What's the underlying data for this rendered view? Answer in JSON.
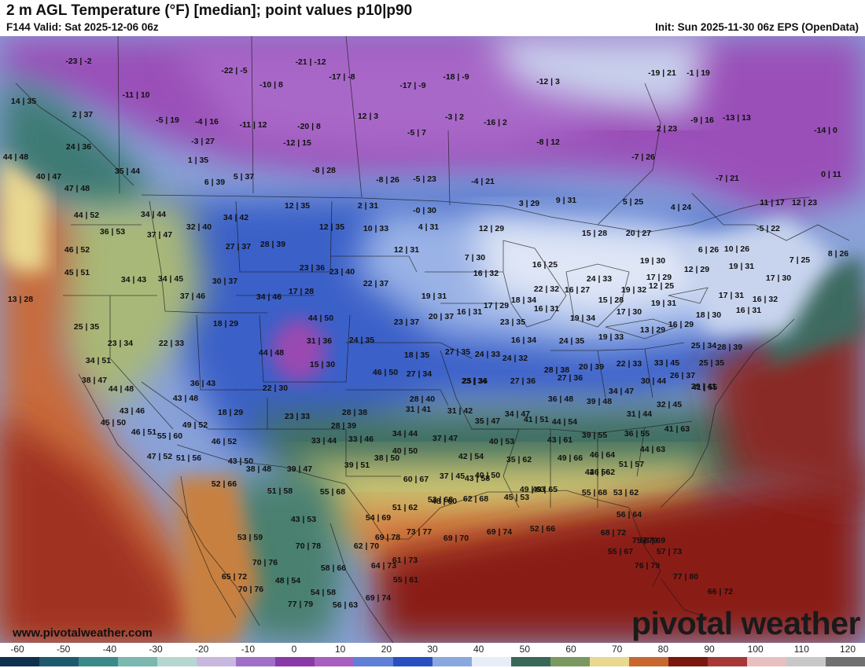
{
  "header": {
    "title": "2 m AGL Temperature (°F) [median]; point values p10|p90",
    "valid": "F144 Valid: Sat 2025-12-06 06z",
    "init": "Init: Sun 2025-11-30 06z EPS (OpenData)"
  },
  "footer": {
    "url": "www.pivotalweather.com",
    "brand": "pivotal weather"
  },
  "scale": {
    "ticks": [
      "-60",
      "-50",
      "-40",
      "-30",
      "-20",
      "-10",
      "0",
      "10",
      "20",
      "30",
      "40",
      "50",
      "60",
      "70",
      "80",
      "90",
      "100",
      "110",
      "120"
    ],
    "colors": [
      "#103050",
      "#1e5a6e",
      "#3a8a8a",
      "#7ab8b0",
      "#b4d8d0",
      "#c8b8e0",
      "#a070c8",
      "#8a3aa8",
      "#a860c0",
      "#6080d8",
      "#2850c0",
      "#8aa8e0",
      "#e8eef8",
      "#3a6858",
      "#7a9860",
      "#e8d890",
      "#c86830",
      "#7a1810",
      "#a83838",
      "#e8c0c0",
      "#c8c8c8",
      "#707070"
    ]
  },
  "points": [
    {
      "label": "-23 | -2"
    },
    {
      "label": "-22 | -5"
    },
    {
      "label": "-21 | -12"
    },
    {
      "label": "-17 | -8"
    },
    {
      "label": "-17 | -9"
    },
    {
      "label": "-18 | -9"
    },
    {
      "label": "-12 | 3"
    },
    {
      "label": "-19 | 21"
    },
    {
      "label": "-1 | 19"
    },
    {
      "label": "14 | 35"
    },
    {
      "label": "-11 | 10"
    },
    {
      "label": "-10 | 8"
    },
    {
      "label": "2 | 37"
    },
    {
      "label": "-5 | 19"
    },
    {
      "label": "-4 | 16"
    },
    {
      "label": "-11 | 12"
    },
    {
      "label": "-20 | 8"
    },
    {
      "label": "12 | 3"
    },
    {
      "label": "-3 | 2"
    },
    {
      "label": "-16 | 2"
    },
    {
      "label": "-5 | 7"
    },
    {
      "label": "2 | 23"
    },
    {
      "label": "-9 | 16"
    },
    {
      "label": "-13 | 13"
    },
    {
      "label": "-14 | 0"
    },
    {
      "label": "24 | 36"
    },
    {
      "label": "-3 | 27"
    },
    {
      "label": "-12 | 15"
    },
    {
      "label": "-8 | 12"
    },
    {
      "label": "44 | 48"
    },
    {
      "label": "1 | 35"
    },
    {
      "label": "-8 | 28"
    },
    {
      "label": "-7 | 26"
    },
    {
      "label": "35 | 44"
    },
    {
      "label": "40 | 47"
    },
    {
      "label": "5 | 37"
    },
    {
      "label": "-8 | 26"
    },
    {
      "label": "-5 | 23"
    },
    {
      "label": "-4 | 21"
    },
    {
      "label": "-7 | 21"
    },
    {
      "label": "0 | 11"
    },
    {
      "label": "6 | 39"
    },
    {
      "label": "47 | 48"
    },
    {
      "label": "12 | 35"
    },
    {
      "label": "2 | 31"
    },
    {
      "label": "-0 | 30"
    },
    {
      "label": "3 | 29"
    },
    {
      "label": "9 | 31"
    },
    {
      "label": "5 | 25"
    },
    {
      "label": "4 | 24"
    },
    {
      "label": "11 | 17"
    },
    {
      "label": "12 | 23"
    },
    {
      "label": "34 | 44"
    },
    {
      "label": "34 | 42"
    },
    {
      "label": "44 | 52"
    },
    {
      "label": "32 | 40"
    },
    {
      "label": "12 | 35"
    },
    {
      "label": "10 | 33"
    },
    {
      "label": "4 | 31"
    },
    {
      "label": "12 | 29"
    },
    {
      "label": "15 | 28"
    },
    {
      "label": "20 | 27"
    },
    {
      "label": "-5 | 22"
    },
    {
      "label": "36 | 53"
    },
    {
      "label": "37 | 47"
    },
    {
      "label": "27 | 37"
    },
    {
      "label": "28 | 39"
    },
    {
      "label": "6 | 26"
    },
    {
      "label": "10 | 26"
    },
    {
      "label": "8 | 26"
    },
    {
      "label": "46 | 52"
    },
    {
      "label": "12 | 31"
    },
    {
      "label": "7 | 30"
    },
    {
      "label": "19 | 30"
    },
    {
      "label": "7 | 25"
    },
    {
      "label": "23 | 36"
    },
    {
      "label": "23 | 40"
    },
    {
      "label": "16 | 25"
    },
    {
      "label": "19 | 31"
    },
    {
      "label": "45 | 51"
    },
    {
      "label": "34 | 43"
    },
    {
      "label": "34 | 45"
    },
    {
      "label": "30 | 37"
    },
    {
      "label": "22 | 37"
    },
    {
      "label": "16 | 32"
    },
    {
      "label": "12 | 29"
    },
    {
      "label": "24 | 33"
    },
    {
      "label": "17 | 29"
    },
    {
      "label": "17 | 30"
    },
    {
      "label": "12 | 25"
    },
    {
      "label": "22 | 32"
    },
    {
      "label": "16 | 27"
    },
    {
      "label": "19 | 32"
    },
    {
      "label": "17 | 31"
    },
    {
      "label": "13 | 28"
    },
    {
      "label": "37 | 46"
    },
    {
      "label": "34 | 46"
    },
    {
      "label": "17 | 28"
    },
    {
      "label": "19 | 31"
    },
    {
      "label": "18 | 34"
    },
    {
      "label": "15 | 28"
    },
    {
      "label": "19 | 31"
    },
    {
      "label": "17 | 29"
    },
    {
      "label": "16 | 31"
    },
    {
      "label": "16 | 31"
    },
    {
      "label": "17 | 30"
    },
    {
      "label": "16 | 32"
    },
    {
      "label": "25 | 35"
    },
    {
      "label": "44 | 50"
    },
    {
      "label": "23 | 37"
    },
    {
      "label": "20 | 37"
    },
    {
      "label": "23 | 35"
    },
    {
      "label": "19 | 34"
    },
    {
      "label": "18 | 30"
    },
    {
      "label": "16 | 31"
    },
    {
      "label": "16 | 29"
    },
    {
      "label": "13 | 29"
    },
    {
      "label": "18 | 29"
    },
    {
      "label": "23 | 34"
    },
    {
      "label": "22 | 33"
    },
    {
      "label": "31 | 36"
    },
    {
      "label": "24 | 35"
    },
    {
      "label": "16 | 34"
    },
    {
      "label": "24 | 35"
    },
    {
      "label": "19 | 33"
    },
    {
      "label": "25 | 34"
    },
    {
      "label": "28 | 39"
    },
    {
      "label": "34 | 51"
    },
    {
      "label": "44 | 48"
    },
    {
      "label": "15 | 30"
    },
    {
      "label": "18 | 35"
    },
    {
      "label": "27 | 35"
    },
    {
      "label": "24 | 33"
    },
    {
      "label": "24 | 32"
    },
    {
      "label": "23 | 34"
    },
    {
      "label": "27 | 36"
    },
    {
      "label": "22 | 33"
    },
    {
      "label": "33 | 45"
    },
    {
      "label": "25 | 35"
    },
    {
      "label": "38 | 47"
    },
    {
      "label": "46 | 50"
    },
    {
      "label": "27 | 34"
    },
    {
      "label": "25 | 36"
    },
    {
      "label": "27 | 36"
    },
    {
      "label": "28 | 38"
    },
    {
      "label": "20 | 39"
    },
    {
      "label": "30 | 44"
    },
    {
      "label": "26 | 37"
    },
    {
      "label": "29 | 41"
    },
    {
      "label": "44 | 48"
    },
    {
      "label": "36 | 43"
    },
    {
      "label": "22 | 30"
    },
    {
      "label": "34 | 47"
    },
    {
      "label": "41 | 55"
    },
    {
      "label": "43 | 46"
    },
    {
      "label": "43 | 48"
    },
    {
      "label": "28 | 40"
    },
    {
      "label": "36 | 48"
    },
    {
      "label": "39 | 48"
    },
    {
      "label": "32 | 45"
    },
    {
      "label": "18 | 29"
    },
    {
      "label": "31 | 41"
    },
    {
      "label": "31 | 42"
    },
    {
      "label": "34 | 47"
    },
    {
      "label": "31 | 44"
    },
    {
      "label": "28 | 38"
    },
    {
      "label": "23 | 33"
    },
    {
      "label": "45 | 50"
    },
    {
      "label": "49 | 52"
    },
    {
      "label": "35 | 47"
    },
    {
      "label": "41 | 51"
    },
    {
      "label": "44 | 54"
    },
    {
      "label": "36 | 55"
    },
    {
      "label": "41 | 63"
    },
    {
      "label": "46 | 51"
    },
    {
      "label": "55 | 60"
    },
    {
      "label": "28 | 39"
    },
    {
      "label": "34 | 44"
    },
    {
      "label": "37 | 47"
    },
    {
      "label": "43 | 61"
    },
    {
      "label": "39 | 55"
    },
    {
      "label": "46 | 52"
    },
    {
      "label": "33 | 44"
    },
    {
      "label": "33 | 46"
    },
    {
      "label": "40 | 53"
    },
    {
      "label": "44 | 63"
    },
    {
      "label": "47 | 52"
    },
    {
      "label": "51 | 56"
    },
    {
      "label": "43 | 50"
    },
    {
      "label": "40 | 50"
    },
    {
      "label": "38 | 50"
    },
    {
      "label": "42 | 54"
    },
    {
      "label": "35 | 62"
    },
    {
      "label": "49 | 66"
    },
    {
      "label": "46 | 64"
    },
    {
      "label": "39 | 51"
    },
    {
      "label": "51 | 57"
    },
    {
      "label": "38 | 48"
    },
    {
      "label": "39 | 47"
    },
    {
      "label": "43 | 58"
    },
    {
      "label": "46 | 62"
    },
    {
      "label": "52 | 66"
    },
    {
      "label": "51 | 58"
    },
    {
      "label": "37 | 45"
    },
    {
      "label": "40 | 50"
    },
    {
      "label": "42 | 56"
    },
    {
      "label": "53 | 68"
    },
    {
      "label": "55 | 68"
    },
    {
      "label": "60 | 67"
    },
    {
      "label": "49 | 63"
    },
    {
      "label": "49 | 65"
    },
    {
      "label": "55 | 68"
    },
    {
      "label": "53 | 62"
    },
    {
      "label": "48 | 60"
    },
    {
      "label": "62 | 68"
    },
    {
      "label": "45 | 53"
    },
    {
      "label": "51 | 62"
    },
    {
      "label": "56 | 64"
    },
    {
      "label": "43 | 53"
    },
    {
      "label": "54 | 69"
    },
    {
      "label": "53 | 59"
    },
    {
      "label": "70 | 78"
    },
    {
      "label": "69 | 78"
    },
    {
      "label": "73 | 77"
    },
    {
      "label": "69 | 70"
    },
    {
      "label": "69 | 74"
    },
    {
      "label": "52 | 66"
    },
    {
      "label": "68 | 72"
    },
    {
      "label": "75 | 79"
    },
    {
      "label": "62 | 70"
    },
    {
      "label": "58 | 69"
    },
    {
      "label": "55 | 67"
    },
    {
      "label": "57 | 73"
    },
    {
      "label": "70 | 76"
    },
    {
      "label": "58 | 66"
    },
    {
      "label": "64 | 73"
    },
    {
      "label": "61 | 73"
    },
    {
      "label": "76 | 79"
    },
    {
      "label": "65 | 72"
    },
    {
      "label": "48 | 54"
    },
    {
      "label": "55 | 61"
    },
    {
      "label": "77 | 80"
    },
    {
      "label": "70 | 76"
    },
    {
      "label": "54 | 58"
    },
    {
      "label": "69 | 74"
    },
    {
      "label": "66 | 72"
    },
    {
      "label": "77 | 79"
    },
    {
      "label": "56 | 63"
    }
  ]
}
